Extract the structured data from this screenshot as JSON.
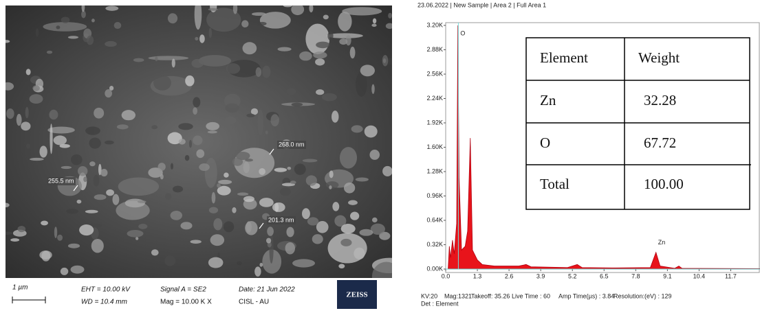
{
  "sem": {
    "annotations": [
      {
        "text": "255.5 nm"
      },
      {
        "text": "268.0 nm"
      },
      {
        "text": "201.3 nm"
      }
    ],
    "scale_label": "1 µm",
    "info": [
      "EHT = 10.00 kV",
      "WD = 10.4 mm",
      "Signal A = SE2",
      "Mag =  10.00 K X",
      "Date: 21 Jun 2022",
      "CISL - AU"
    ],
    "logo": "ZEISS"
  },
  "chart_data": {
    "type": "area",
    "title": "23.06.2022 | New Sample | Area 2 | Full Area 1",
    "x": [
      0.1,
      0.15,
      0.2,
      0.28,
      0.35,
      0.45,
      0.5,
      0.55,
      0.65,
      0.8,
      0.9,
      1.01,
      1.1,
      1.3,
      1.5,
      2,
      3,
      3.3,
      3.5,
      5,
      5.4,
      5.6,
      7,
      8.4,
      8.63,
      8.8,
      9.4,
      9.57,
      9.7,
      12.9
    ],
    "values": [
      0,
      300,
      150,
      380,
      200,
      600,
      3200,
      1200,
      250,
      300,
      500,
      1720,
      250,
      120,
      60,
      40,
      40,
      60,
      30,
      20,
      60,
      20,
      15,
      20,
      220,
      40,
      10,
      40,
      10,
      5
    ],
    "color": "#e8141b",
    "xlim": [
      0,
      12.9
    ],
    "ylim": [
      0,
      3200
    ],
    "xticks": [
      {
        "value": 0,
        "label": "0.0"
      },
      1.3,
      2.6,
      3.9,
      5.2,
      6.5,
      7.8,
      9.1,
      10.4,
      11.7
    ],
    "yticks": [
      {
        "value": 0,
        "label": "0.00K"
      },
      {
        "value": 320,
        "label": "0.32K"
      },
      {
        "value": 640,
        "label": "0.64K"
      },
      {
        "value": 960,
        "label": "0.96K"
      },
      {
        "value": 1280,
        "label": "1.28K"
      },
      {
        "value": 1600,
        "label": "1.60K"
      },
      {
        "value": 1920,
        "label": "1.92K"
      },
      {
        "value": 2240,
        "label": "2.24K"
      },
      {
        "value": 2560,
        "label": "2.56K"
      },
      {
        "value": 2880,
        "label": "2.88K"
      },
      {
        "value": 3200,
        "label": "3.20K"
      }
    ],
    "annotations": [
      {
        "text": "O",
        "x": 0.52,
        "y": 3200
      },
      {
        "text": "Zn",
        "x": 8.63,
        "y": 220
      }
    ],
    "footer": [
      "KV:20",
      "Mag:1321",
      "Takeoff: 35.26",
      "Live Time : 60",
      "Amp Time(µs) : 3.84",
      "Resolution:(eV) : 129",
      "Det : Element"
    ]
  },
  "table": {
    "header": [
      "Element",
      "Weight"
    ],
    "rows": [
      [
        "Zn",
        "32.28"
      ],
      [
        "O",
        "67.72"
      ],
      [
        "Total",
        "100.00"
      ]
    ]
  }
}
